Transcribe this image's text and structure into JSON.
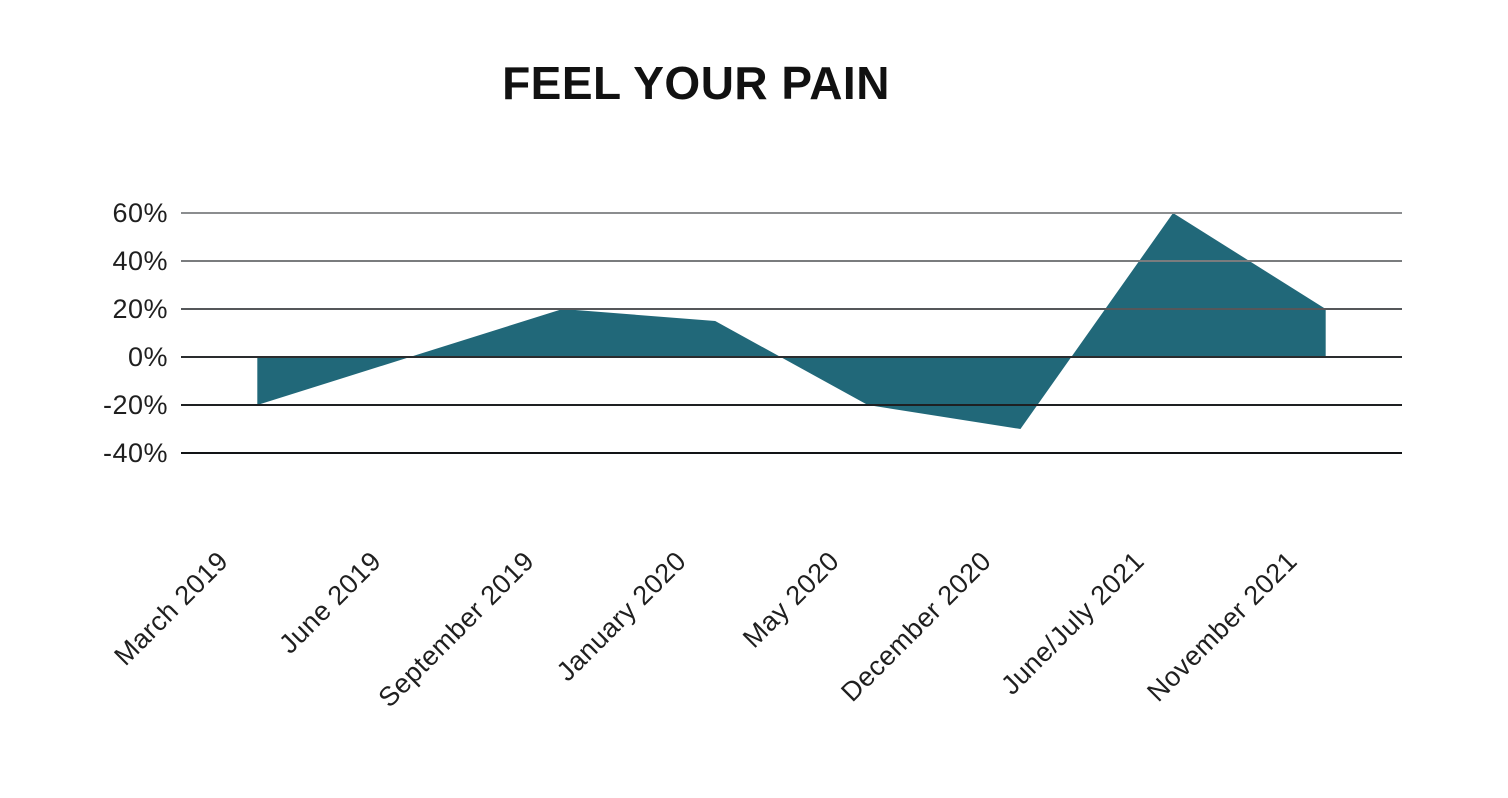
{
  "title": "FEEL YOUR PAIN",
  "colors": {
    "area_fill": "#216879",
    "title_text": "#111111",
    "axis_text": "#1f1f1f",
    "background": "#ffffff"
  },
  "chart_data": {
    "type": "area",
    "title": "FEEL YOUR PAIN",
    "categories": [
      "March 2019",
      "June 2019",
      "September 2019",
      "January 2020",
      "May 2020",
      "December 2020",
      "June/July 2021",
      "November 2021"
    ],
    "values": [
      -20,
      0,
      20,
      15,
      -20,
      -30,
      60,
      20
    ],
    "unit": "%",
    "xlabel": "",
    "ylabel": "",
    "ylim": [
      -40,
      60
    ],
    "baseline": 0,
    "grid": "horizontal",
    "legend": "none",
    "area_color": "#216879",
    "yticks": [
      {
        "value": 60,
        "label": "60%",
        "line_color": "#8b8d8f"
      },
      {
        "value": 40,
        "label": "40%",
        "line_color": "#7a7c7e"
      },
      {
        "value": 20,
        "label": "20%",
        "line_color": "#55575a"
      },
      {
        "value": 0,
        "label": "0%",
        "line_color": "#2a2c2e"
      },
      {
        "value": -20,
        "label": "-20%",
        "line_color": "#1e2022"
      },
      {
        "value": -40,
        "label": "-40%",
        "line_color": "#121416"
      }
    ]
  }
}
